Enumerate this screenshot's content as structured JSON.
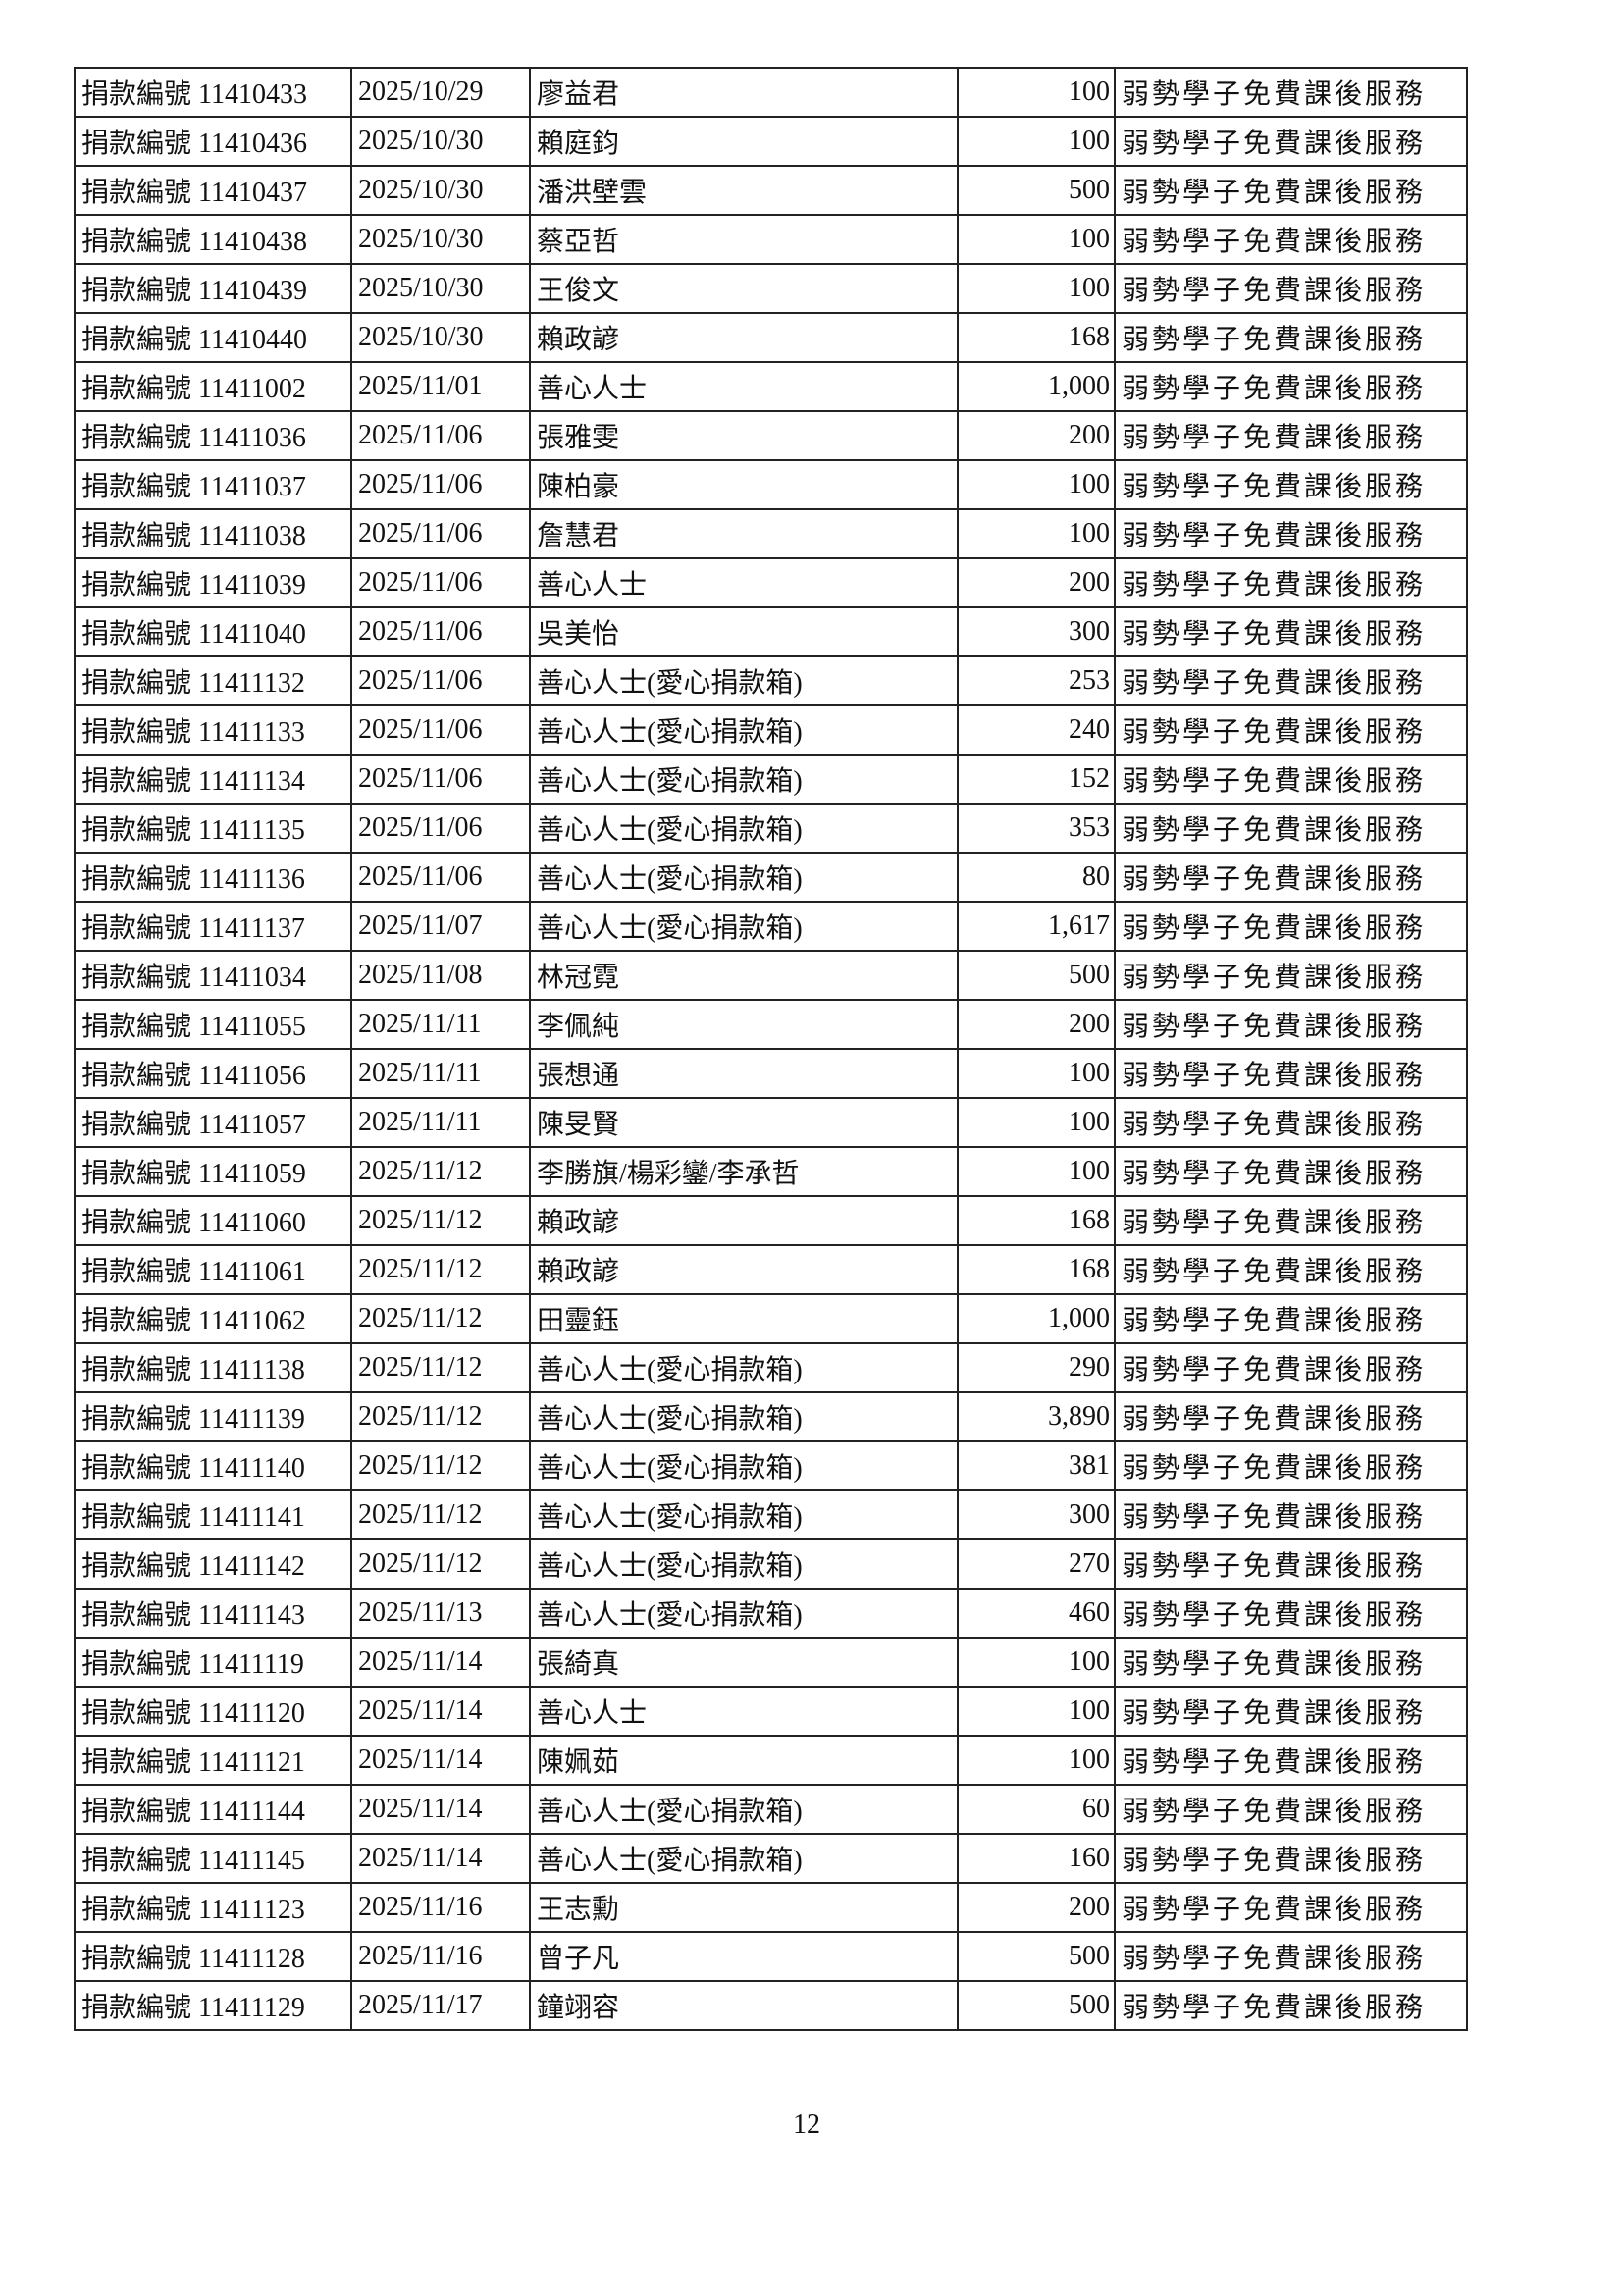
{
  "page_number": "12",
  "rows": [
    {
      "id": "捐款編號 11410433",
      "date": "2025/10/29",
      "name": "廖益君",
      "amount": "100",
      "purpose": "弱勢學子免費課後服務"
    },
    {
      "id": "捐款編號 11410436",
      "date": "2025/10/30",
      "name": "賴庭鈞",
      "amount": "100",
      "purpose": "弱勢學子免費課後服務"
    },
    {
      "id": "捐款編號 11410437",
      "date": "2025/10/30",
      "name": "潘洪壁雲",
      "amount": "500",
      "purpose": "弱勢學子免費課後服務"
    },
    {
      "id": "捐款編號 11410438",
      "date": "2025/10/30",
      "name": "蔡亞哲",
      "amount": "100",
      "purpose": "弱勢學子免費課後服務"
    },
    {
      "id": "捐款編號 11410439",
      "date": "2025/10/30",
      "name": "王俊文",
      "amount": "100",
      "purpose": "弱勢學子免費課後服務"
    },
    {
      "id": "捐款編號 11410440",
      "date": "2025/10/30",
      "name": "賴政諺",
      "amount": "168",
      "purpose": "弱勢學子免費課後服務"
    },
    {
      "id": "捐款編號 11411002",
      "date": "2025/11/01",
      "name": "善心人士",
      "amount": "1,000",
      "purpose": "弱勢學子免費課後服務"
    },
    {
      "id": "捐款編號 11411036",
      "date": "2025/11/06",
      "name": "張雅雯",
      "amount": "200",
      "purpose": "弱勢學子免費課後服務"
    },
    {
      "id": "捐款編號 11411037",
      "date": "2025/11/06",
      "name": "陳柏豪",
      "amount": "100",
      "purpose": "弱勢學子免費課後服務"
    },
    {
      "id": "捐款編號 11411038",
      "date": "2025/11/06",
      "name": "詹慧君",
      "amount": "100",
      "purpose": "弱勢學子免費課後服務"
    },
    {
      "id": "捐款編號 11411039",
      "date": "2025/11/06",
      "name": "善心人士",
      "amount": "200",
      "purpose": "弱勢學子免費課後服務"
    },
    {
      "id": "捐款編號 11411040",
      "date": "2025/11/06",
      "name": "吳美怡",
      "amount": "300",
      "purpose": "弱勢學子免費課後服務"
    },
    {
      "id": "捐款編號 11411132",
      "date": "2025/11/06",
      "name": "善心人士(愛心捐款箱)",
      "amount": "253",
      "purpose": "弱勢學子免費課後服務"
    },
    {
      "id": "捐款編號 11411133",
      "date": "2025/11/06",
      "name": "善心人士(愛心捐款箱)",
      "amount": "240",
      "purpose": "弱勢學子免費課後服務"
    },
    {
      "id": "捐款編號 11411134",
      "date": "2025/11/06",
      "name": "善心人士(愛心捐款箱)",
      "amount": "152",
      "purpose": "弱勢學子免費課後服務"
    },
    {
      "id": "捐款編號 11411135",
      "date": "2025/11/06",
      "name": "善心人士(愛心捐款箱)",
      "amount": "353",
      "purpose": "弱勢學子免費課後服務"
    },
    {
      "id": "捐款編號 11411136",
      "date": "2025/11/06",
      "name": "善心人士(愛心捐款箱)",
      "amount": "80",
      "purpose": "弱勢學子免費課後服務"
    },
    {
      "id": "捐款編號 11411137",
      "date": "2025/11/07",
      "name": "善心人士(愛心捐款箱)",
      "amount": "1,617",
      "purpose": "弱勢學子免費課後服務"
    },
    {
      "id": "捐款編號 11411034",
      "date": "2025/11/08",
      "name": "林冠霓",
      "amount": "500",
      "purpose": "弱勢學子免費課後服務"
    },
    {
      "id": "捐款編號 11411055",
      "date": "2025/11/11",
      "name": "李佩純",
      "amount": "200",
      "purpose": "弱勢學子免費課後服務"
    },
    {
      "id": "捐款編號 11411056",
      "date": "2025/11/11",
      "name": "張想通",
      "amount": "100",
      "purpose": "弱勢學子免費課後服務"
    },
    {
      "id": "捐款編號 11411057",
      "date": "2025/11/11",
      "name": "陳旻賢",
      "amount": "100",
      "purpose": "弱勢學子免費課後服務"
    },
    {
      "id": "捐款編號 11411059",
      "date": "2025/11/12",
      "name": "李勝旗/楊彩鑾/李承哲",
      "amount": "100",
      "purpose": "弱勢學子免費課後服務"
    },
    {
      "id": "捐款編號 11411060",
      "date": "2025/11/12",
      "name": "賴政諺",
      "amount": "168",
      "purpose": "弱勢學子免費課後服務"
    },
    {
      "id": "捐款編號 11411061",
      "date": "2025/11/12",
      "name": "賴政諺",
      "amount": "168",
      "purpose": "弱勢學子免費課後服務"
    },
    {
      "id": "捐款編號 11411062",
      "date": "2025/11/12",
      "name": "田靈鈺",
      "amount": "1,000",
      "purpose": "弱勢學子免費課後服務"
    },
    {
      "id": "捐款編號 11411138",
      "date": "2025/11/12",
      "name": "善心人士(愛心捐款箱)",
      "amount": "290",
      "purpose": "弱勢學子免費課後服務"
    },
    {
      "id": "捐款編號 11411139",
      "date": "2025/11/12",
      "name": "善心人士(愛心捐款箱)",
      "amount": "3,890",
      "purpose": "弱勢學子免費課後服務"
    },
    {
      "id": "捐款編號 11411140",
      "date": "2025/11/12",
      "name": "善心人士(愛心捐款箱)",
      "amount": "381",
      "purpose": "弱勢學子免費課後服務"
    },
    {
      "id": "捐款編號 11411141",
      "date": "2025/11/12",
      "name": "善心人士(愛心捐款箱)",
      "amount": "300",
      "purpose": "弱勢學子免費課後服務"
    },
    {
      "id": "捐款編號 11411142",
      "date": "2025/11/12",
      "name": "善心人士(愛心捐款箱)",
      "amount": "270",
      "purpose": "弱勢學子免費課後服務"
    },
    {
      "id": "捐款編號 11411143",
      "date": "2025/11/13",
      "name": "善心人士(愛心捐款箱)",
      "amount": "460",
      "purpose": "弱勢學子免費課後服務"
    },
    {
      "id": "捐款編號 11411119",
      "date": "2025/11/14",
      "name": "張綺真",
      "amount": "100",
      "purpose": "弱勢學子免費課後服務"
    },
    {
      "id": "捐款編號 11411120",
      "date": "2025/11/14",
      "name": "善心人士",
      "amount": "100",
      "purpose": "弱勢學子免費課後服務"
    },
    {
      "id": "捐款編號 11411121",
      "date": "2025/11/14",
      "name": "陳姵茹",
      "amount": "100",
      "purpose": "弱勢學子免費課後服務"
    },
    {
      "id": "捐款編號 11411144",
      "date": "2025/11/14",
      "name": "善心人士(愛心捐款箱)",
      "amount": "60",
      "purpose": "弱勢學子免費課後服務"
    },
    {
      "id": "捐款編號 11411145",
      "date": "2025/11/14",
      "name": "善心人士(愛心捐款箱)",
      "amount": "160",
      "purpose": "弱勢學子免費課後服務"
    },
    {
      "id": "捐款編號 11411123",
      "date": "2025/11/16",
      "name": "王志勳",
      "amount": "200",
      "purpose": "弱勢學子免費課後服務"
    },
    {
      "id": "捐款編號 11411128",
      "date": "2025/11/16",
      "name": "曾子凡",
      "amount": "500",
      "purpose": "弱勢學子免費課後服務"
    },
    {
      "id": "捐款編號 11411129",
      "date": "2025/11/17",
      "name": "鐘翊容",
      "amount": "500",
      "purpose": "弱勢學子免費課後服務"
    }
  ]
}
